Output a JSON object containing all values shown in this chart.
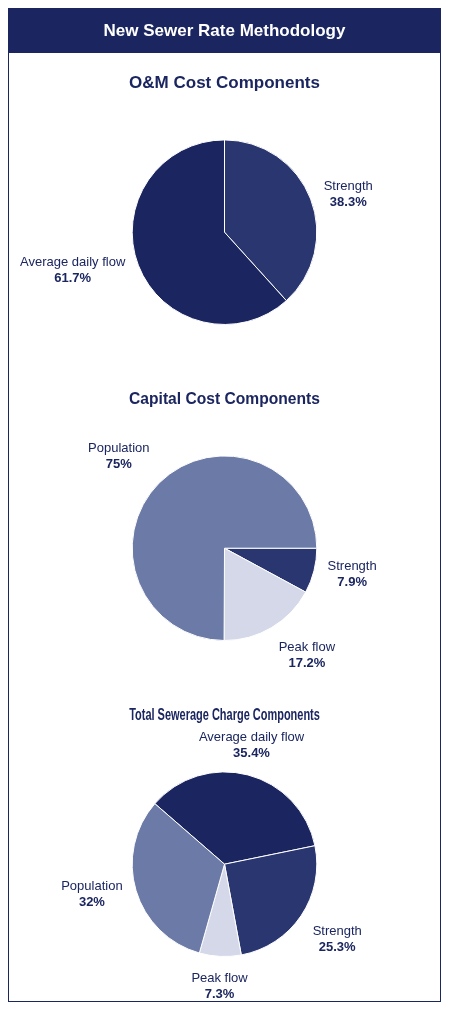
{
  "chart_data": [
    {
      "type": "pie",
      "title": "New Sewer Rate Methodology",
      "subtitle": "O&M Cost Components",
      "categories": [
        "Strength",
        "Average daily flow"
      ],
      "values": [
        38.3,
        61.7
      ],
      "value_labels": [
        "38.3%",
        "61.7%"
      ],
      "colors": [
        "#2a3670",
        "#1b2660"
      ]
    },
    {
      "type": "pie",
      "title": "Capital Cost Components",
      "categories": [
        "Strength",
        "Peak flow",
        "Population"
      ],
      "values": [
        7.9,
        17.2,
        75
      ],
      "value_labels": [
        "7.9%",
        "17.2%",
        "75%"
      ],
      "colors": [
        "#2a3670",
        "#d4d8e8",
        "#6b7aa6"
      ]
    },
    {
      "type": "pie",
      "title": "Total Sewerage Charge Components",
      "categories": [
        "Average daily flow",
        "Strength",
        "Peak flow",
        "Population"
      ],
      "values": [
        35.4,
        25.3,
        7.3,
        32
      ],
      "value_labels": [
        "35.4%",
        "25.3%",
        "7.3%",
        "32%"
      ],
      "colors": [
        "#1b2660",
        "#2a3670",
        "#d4d8e8",
        "#6b7aa6"
      ]
    }
  ]
}
